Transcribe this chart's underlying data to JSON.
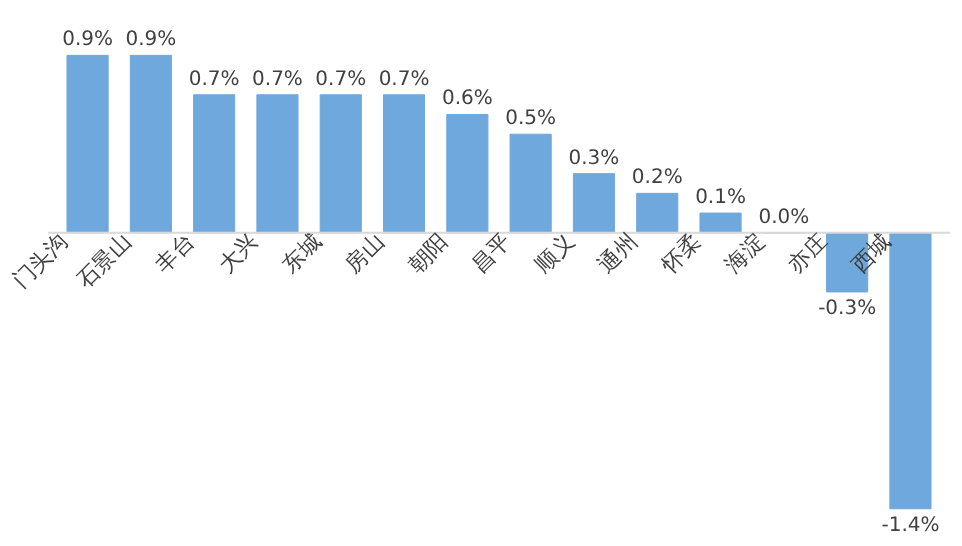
{
  "chart_data": {
    "type": "bar",
    "categories": [
      "门头沟",
      "石景山",
      "丰台",
      "大兴",
      "东城",
      "房山",
      "朝阳",
      "昌平",
      "顺义",
      "通州",
      "怀柔",
      "海淀",
      "亦庄",
      "西城"
    ],
    "values": [
      0.9,
      0.9,
      0.7,
      0.7,
      0.7,
      0.7,
      0.6,
      0.5,
      0.3,
      0.2,
      0.1,
      0.0,
      -0.3,
      -1.4
    ],
    "value_labels": [
      "0.9%",
      "0.9%",
      "0.7%",
      "0.7%",
      "0.7%",
      "0.7%",
      "0.6%",
      "0.5%",
      "0.3%",
      "0.2%",
      "0.1%",
      "0.0%",
      "-0.3%",
      "-1.4%"
    ],
    "color": "#6fa8dc"
  }
}
